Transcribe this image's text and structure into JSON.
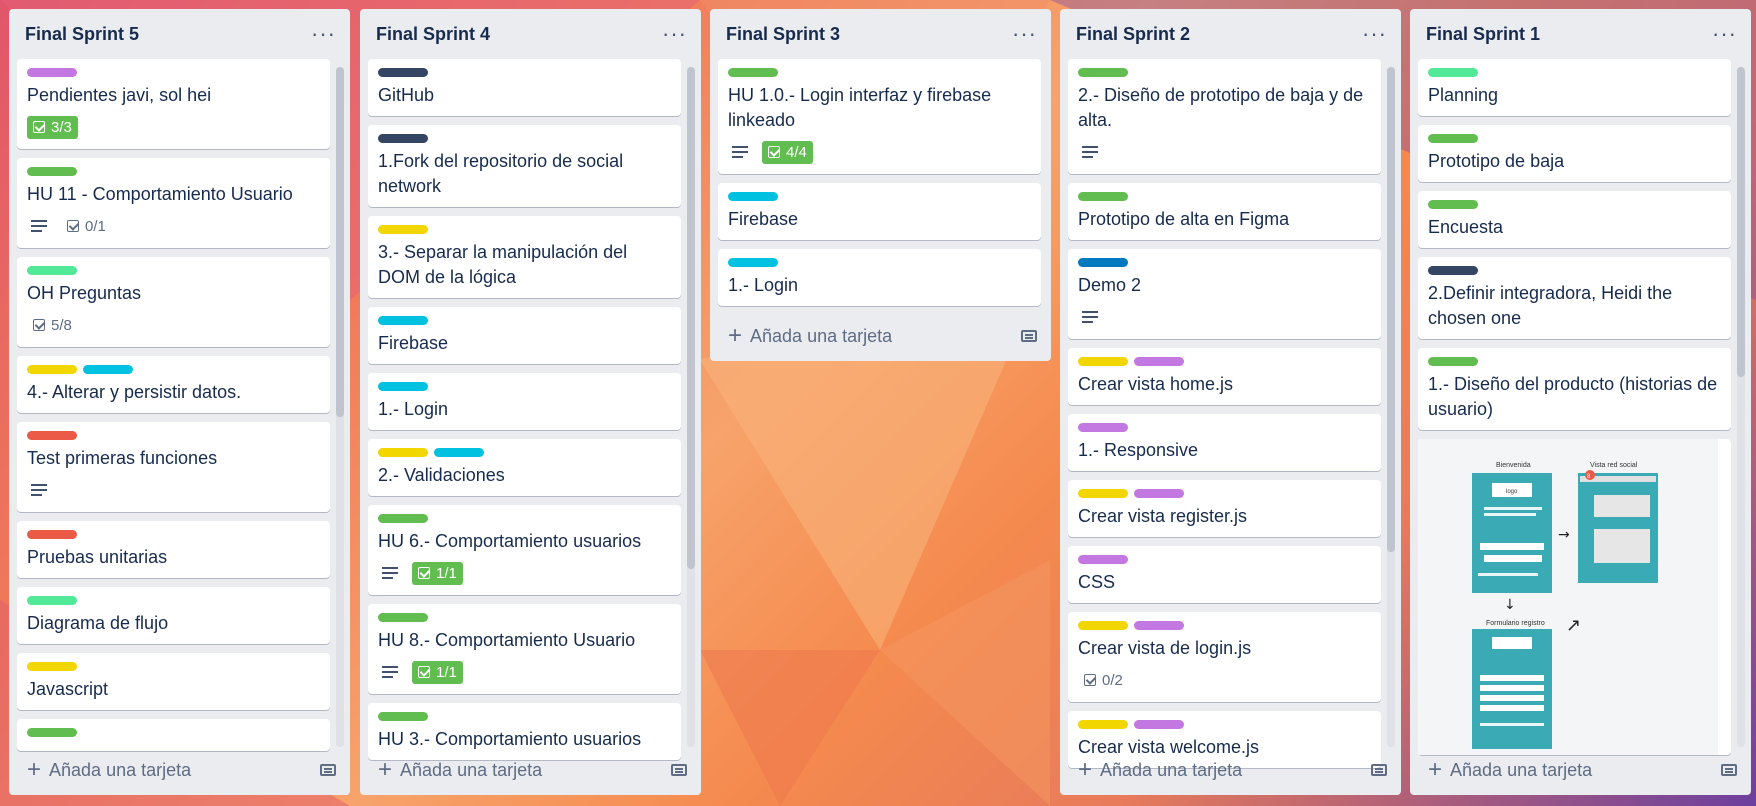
{
  "colors": {
    "green": "#61bd4f",
    "purple": "#c377e0",
    "lime": "#51e898",
    "yellow": "#f2d600",
    "sky": "#00c2e0",
    "red": "#eb5a46",
    "navy": "#344563",
    "blue": "#0079bf"
  },
  "lists": [
    {
      "title": "Final Sprint 5",
      "add_label": "Añada una tarjeta",
      "cards": [
        {
          "labels": [
            "purple"
          ],
          "title": "Pendientes javi, sol hei",
          "checklist": "3/3",
          "complete": true
        },
        {
          "labels": [
            "green"
          ],
          "title": "HU 11 - Comportamiento Usuario",
          "desc": true,
          "checklist": "0/1"
        },
        {
          "labels": [
            "lime"
          ],
          "title": "OH Preguntas",
          "checklist": "5/8"
        },
        {
          "labels": [
            "yellow",
            "sky"
          ],
          "title": "4.- Alterar y persistir datos."
        },
        {
          "labels": [
            "red"
          ],
          "title": "Test primeras funciones",
          "desc": true
        },
        {
          "labels": [
            "red"
          ],
          "title": "Pruebas unitarias"
        },
        {
          "labels": [
            "lime"
          ],
          "title": "Diagrama de flujo"
        },
        {
          "labels": [
            "yellow"
          ],
          "title": "Javascript"
        },
        {
          "labels": [
            "green"
          ],
          "title": ""
        }
      ]
    },
    {
      "title": "Final Sprint 4",
      "add_label": "Añada una tarjeta",
      "cards": [
        {
          "labels": [
            "navy"
          ],
          "title": "GitHub"
        },
        {
          "labels": [
            "navy"
          ],
          "title": "1.Fork del repositorio de social network"
        },
        {
          "labels": [
            "yellow"
          ],
          "title": "3.- Separar la manipulación del DOM de la lógica"
        },
        {
          "labels": [
            "sky"
          ],
          "title": "Firebase"
        },
        {
          "labels": [
            "sky"
          ],
          "title": "1.- Login"
        },
        {
          "labels": [
            "yellow",
            "sky"
          ],
          "title": "2.- Validaciones"
        },
        {
          "labels": [
            "green"
          ],
          "title": "HU 6.- Comportamiento usuarios",
          "desc": true,
          "checklist": "1/1",
          "complete": true
        },
        {
          "labels": [
            "green"
          ],
          "title": "HU 8.- Comportamiento Usuario",
          "desc": true,
          "checklist": "1/1",
          "complete": true
        },
        {
          "labels": [
            "green"
          ],
          "title": "HU 3.- Comportamiento usuarios"
        }
      ]
    },
    {
      "title": "Final Sprint 3",
      "add_label": "Añada una tarjeta",
      "cards": [
        {
          "labels": [
            "green"
          ],
          "title": "HU 1.0.- Login interfaz y firebase linkeado",
          "desc": true,
          "checklist": "4/4",
          "complete": true
        },
        {
          "labels": [
            "sky"
          ],
          "title": "Firebase"
        },
        {
          "labels": [
            "sky"
          ],
          "title": "1.- Login"
        }
      ]
    },
    {
      "title": "Final Sprint 2",
      "add_label": "Añada una tarjeta",
      "cards": [
        {
          "labels": [
            "green"
          ],
          "title": "2.- Diseño de prototipo de baja y de alta.",
          "desc": true
        },
        {
          "labels": [
            "green"
          ],
          "title": "Prototipo de alta en Figma"
        },
        {
          "labels": [
            "blue"
          ],
          "title": "Demo 2",
          "desc": true
        },
        {
          "labels": [
            "yellow",
            "purple"
          ],
          "title": "Crear vista home.js"
        },
        {
          "labels": [
            "purple"
          ],
          "title": "1.- Responsive"
        },
        {
          "labels": [
            "yellow",
            "purple"
          ],
          "title": "Crear vista register.js"
        },
        {
          "labels": [
            "purple"
          ],
          "title": "CSS"
        },
        {
          "labels": [
            "yellow",
            "purple"
          ],
          "title": "Crear vista de login.js",
          "checklist": "0/2"
        },
        {
          "labels": [
            "yellow",
            "purple"
          ],
          "title": "Crear vista welcome.js"
        }
      ]
    },
    {
      "title": "Final Sprint 1",
      "add_label": "Añada una tarjeta",
      "cards": [
        {
          "labels": [
            "lime"
          ],
          "title": "Planning"
        },
        {
          "labels": [
            "green"
          ],
          "title": "Prototipo de baja"
        },
        {
          "labels": [
            "green"
          ],
          "title": "Encuesta"
        },
        {
          "labels": [
            "navy"
          ],
          "title": "2.Definir integradora, Heidi the chosen one"
        },
        {
          "labels": [
            "green"
          ],
          "title": "1.- Diseño del producto (historias de usuario)"
        }
      ],
      "image_card": {
        "screen1_title": "Bienvenida",
        "screen2_title": "Vista red social",
        "screen3_title": "Formulario registro",
        "logo": "logo",
        "badge": "8"
      }
    }
  ]
}
